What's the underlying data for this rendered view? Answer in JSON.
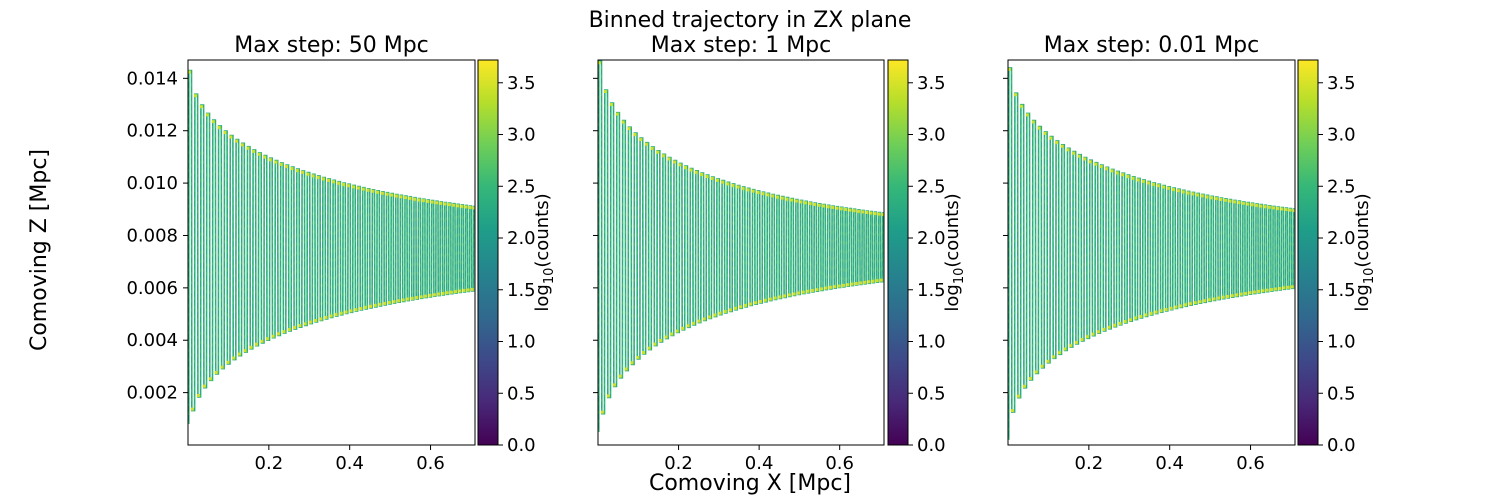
{
  "figure": {
    "suptitle": "Binned trajectory in ZX plane",
    "shared_xlabel": "Comoving X [Mpc]",
    "shared_ylabel": "Comoving Z [Mpc]"
  },
  "chart_data": [
    {
      "type": "heatmap",
      "title": "Max step: 50 Mpc",
      "xlim": [
        0.0,
        0.71
      ],
      "ylim": [
        0.0,
        0.0147
      ],
      "x_ticks": [
        "0.2",
        "0.4",
        "0.6"
      ],
      "x_tick_values": [
        0.2,
        0.4,
        0.6
      ],
      "y_ticks": [
        "0.002",
        "0.004",
        "0.006",
        "0.008",
        "0.010",
        "0.012",
        "0.014"
      ],
      "y_tick_values": [
        0.002,
        0.004,
        0.006,
        0.008,
        0.01,
        0.012,
        0.014
      ],
      "show_yticklabels": true,
      "colorbar": {
        "label": "log10(counts)",
        "range": [
          0.0,
          3.72
        ],
        "ticks": [
          "0.0",
          "0.5",
          "1.0",
          "1.5",
          "2.0",
          "2.5",
          "3.0",
          "3.5"
        ],
        "tick_values": [
          0.0,
          0.5,
          1.0,
          1.5,
          2.0,
          2.5,
          3.0,
          3.5
        ]
      },
      "trajectory": {
        "center_z": 0.0075,
        "amplitude_start": 0.0068,
        "amplitude_end": 0.0016,
        "period_start": 0.015,
        "period_end": 0.01,
        "x_start": 0.002,
        "x_end": 0.71,
        "initial_z": 0.0008
      }
    },
    {
      "type": "heatmap",
      "title": "Max step: 1 Mpc",
      "xlim": [
        0.0,
        0.71
      ],
      "ylim": [
        0.0,
        0.0147
      ],
      "x_ticks": [
        "0.2",
        "0.4",
        "0.6"
      ],
      "x_tick_values": [
        0.2,
        0.4,
        0.6
      ],
      "y_ticks": [],
      "y_tick_values": [
        0.002,
        0.004,
        0.006,
        0.008,
        0.01,
        0.012,
        0.014
      ],
      "show_yticklabels": false,
      "colorbar": {
        "label": "log10(counts)",
        "range": [
          0.0,
          3.72
        ],
        "ticks": [
          "0.0",
          "0.5",
          "1.0",
          "1.5",
          "2.0",
          "2.5",
          "3.0",
          "3.5"
        ],
        "tick_values": [
          0.0,
          0.5,
          1.0,
          1.5,
          2.0,
          2.5,
          3.0,
          3.5
        ]
      },
      "trajectory": {
        "center_z": 0.00755,
        "amplitude_start": 0.0071,
        "amplitude_end": 0.0013,
        "period_start": 0.015,
        "period_end": 0.01,
        "x_start": 0.002,
        "x_end": 0.71,
        "initial_z": 0.0005
      }
    },
    {
      "type": "heatmap",
      "title": "Max step: 0.01 Mpc",
      "xlim": [
        0.0,
        0.71
      ],
      "ylim": [
        0.0,
        0.0147
      ],
      "x_ticks": [
        "0.2",
        "0.4",
        "0.6"
      ],
      "x_tick_values": [
        0.2,
        0.4,
        0.6
      ],
      "y_ticks": [],
      "y_tick_values": [
        0.002,
        0.004,
        0.006,
        0.008,
        0.01,
        0.012,
        0.014
      ],
      "show_yticklabels": false,
      "colorbar": {
        "label": "log10(counts)",
        "range": [
          0.0,
          3.72
        ],
        "ticks": [
          "0.0",
          "0.5",
          "1.0",
          "1.5",
          "2.0",
          "2.5",
          "3.0",
          "3.5"
        ],
        "tick_values": [
          0.0,
          0.5,
          1.0,
          1.5,
          2.0,
          2.5,
          3.0,
          3.5
        ]
      },
      "trajectory": {
        "center_z": 0.0075,
        "amplitude_start": 0.0069,
        "amplitude_end": 0.0015,
        "period_start": 0.015,
        "period_end": 0.01,
        "x_start": 0.002,
        "x_end": 0.71,
        "initial_z": 0.0002
      }
    }
  ]
}
